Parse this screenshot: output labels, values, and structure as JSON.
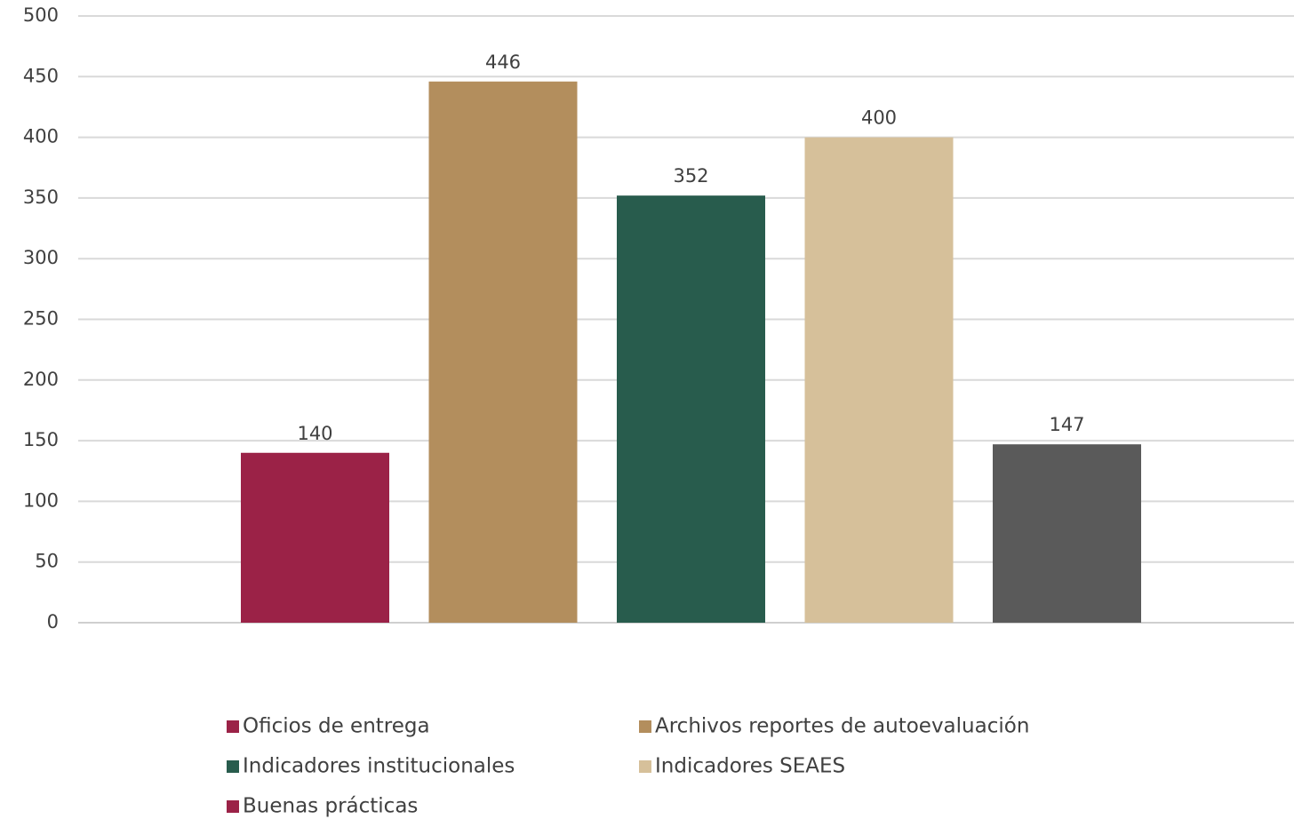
{
  "chart_data": {
    "type": "bar",
    "title": "",
    "xlabel": "",
    "ylabel": "",
    "ylim": [
      0,
      500
    ],
    "yticks": [
      0,
      50,
      100,
      150,
      200,
      250,
      300,
      350,
      400,
      450,
      500
    ],
    "grid": true,
    "legend_position": "bottom",
    "series": [
      {
        "name": "Oficios de entrega",
        "value": 140,
        "label": "140",
        "color": "#9B2247"
      },
      {
        "name": "Archivos reportes de autoevaluación",
        "value": 446,
        "label": "446",
        "color": "#B38E5D"
      },
      {
        "name": "Indicadores institucionales",
        "value": 352,
        "label": "352",
        "color": "#285C4D"
      },
      {
        "name": "Indicadores SEAES",
        "value": 400,
        "label": "400",
        "color": "#D6C09A"
      },
      {
        "name": "Buenas prácticas",
        "value": 147,
        "label": "147",
        "color": "#5A5A5A"
      }
    ],
    "legend_marker_colors": [
      "#9B2247",
      "#B38E5D",
      "#285C4D",
      "#D6C09A",
      "#9B2247"
    ]
  }
}
